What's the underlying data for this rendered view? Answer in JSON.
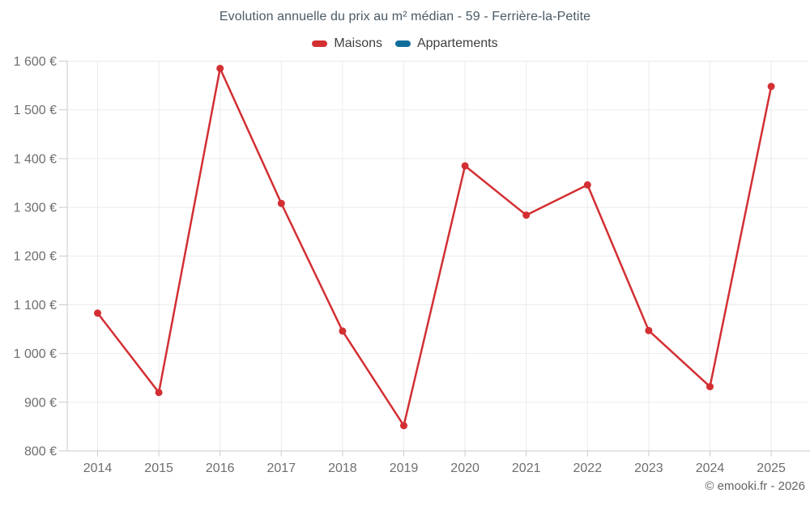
{
  "chart": {
    "title": "Evolution annuelle du prix au m² médian - 59 - Ferrière-la-Petite"
  },
  "footer": {
    "copyright": "© emooki.fr - 2026"
  },
  "chart_data": {
    "type": "line",
    "title": "Evolution annuelle du prix au m² médian - 59 - Ferrière-la-Petite",
    "categories": [
      "2014",
      "2015",
      "2016",
      "2017",
      "2018",
      "2019",
      "2020",
      "2021",
      "2022",
      "2023",
      "2024",
      "2025"
    ],
    "series": [
      {
        "name": "Maisons",
        "color": "#d32f33",
        "values": [
          1083,
          920,
          1585,
          1308,
          1046,
          852,
          1385,
          1284,
          1346,
          1047,
          932,
          1548
        ]
      },
      {
        "name": "Appartements",
        "color": "#116e9c",
        "values": []
      }
    ],
    "xlabel": "",
    "ylabel": "",
    "ylim": [
      800,
      1600
    ],
    "y_tick_step": 100,
    "y_tick_labels": [
      "800 €",
      "900 €",
      "1 000 €",
      "1 100 €",
      "1 200 €",
      "1 300 €",
      "1 400 €",
      "1 500 €",
      "1 600 €"
    ],
    "grid": true,
    "legend_position": "top",
    "colors": {
      "grid_line": "#ebebeb",
      "axis_line": "#c9c9c9",
      "tick_mark": "#c9c9c9",
      "label_text": "#6e6e6e"
    }
  }
}
